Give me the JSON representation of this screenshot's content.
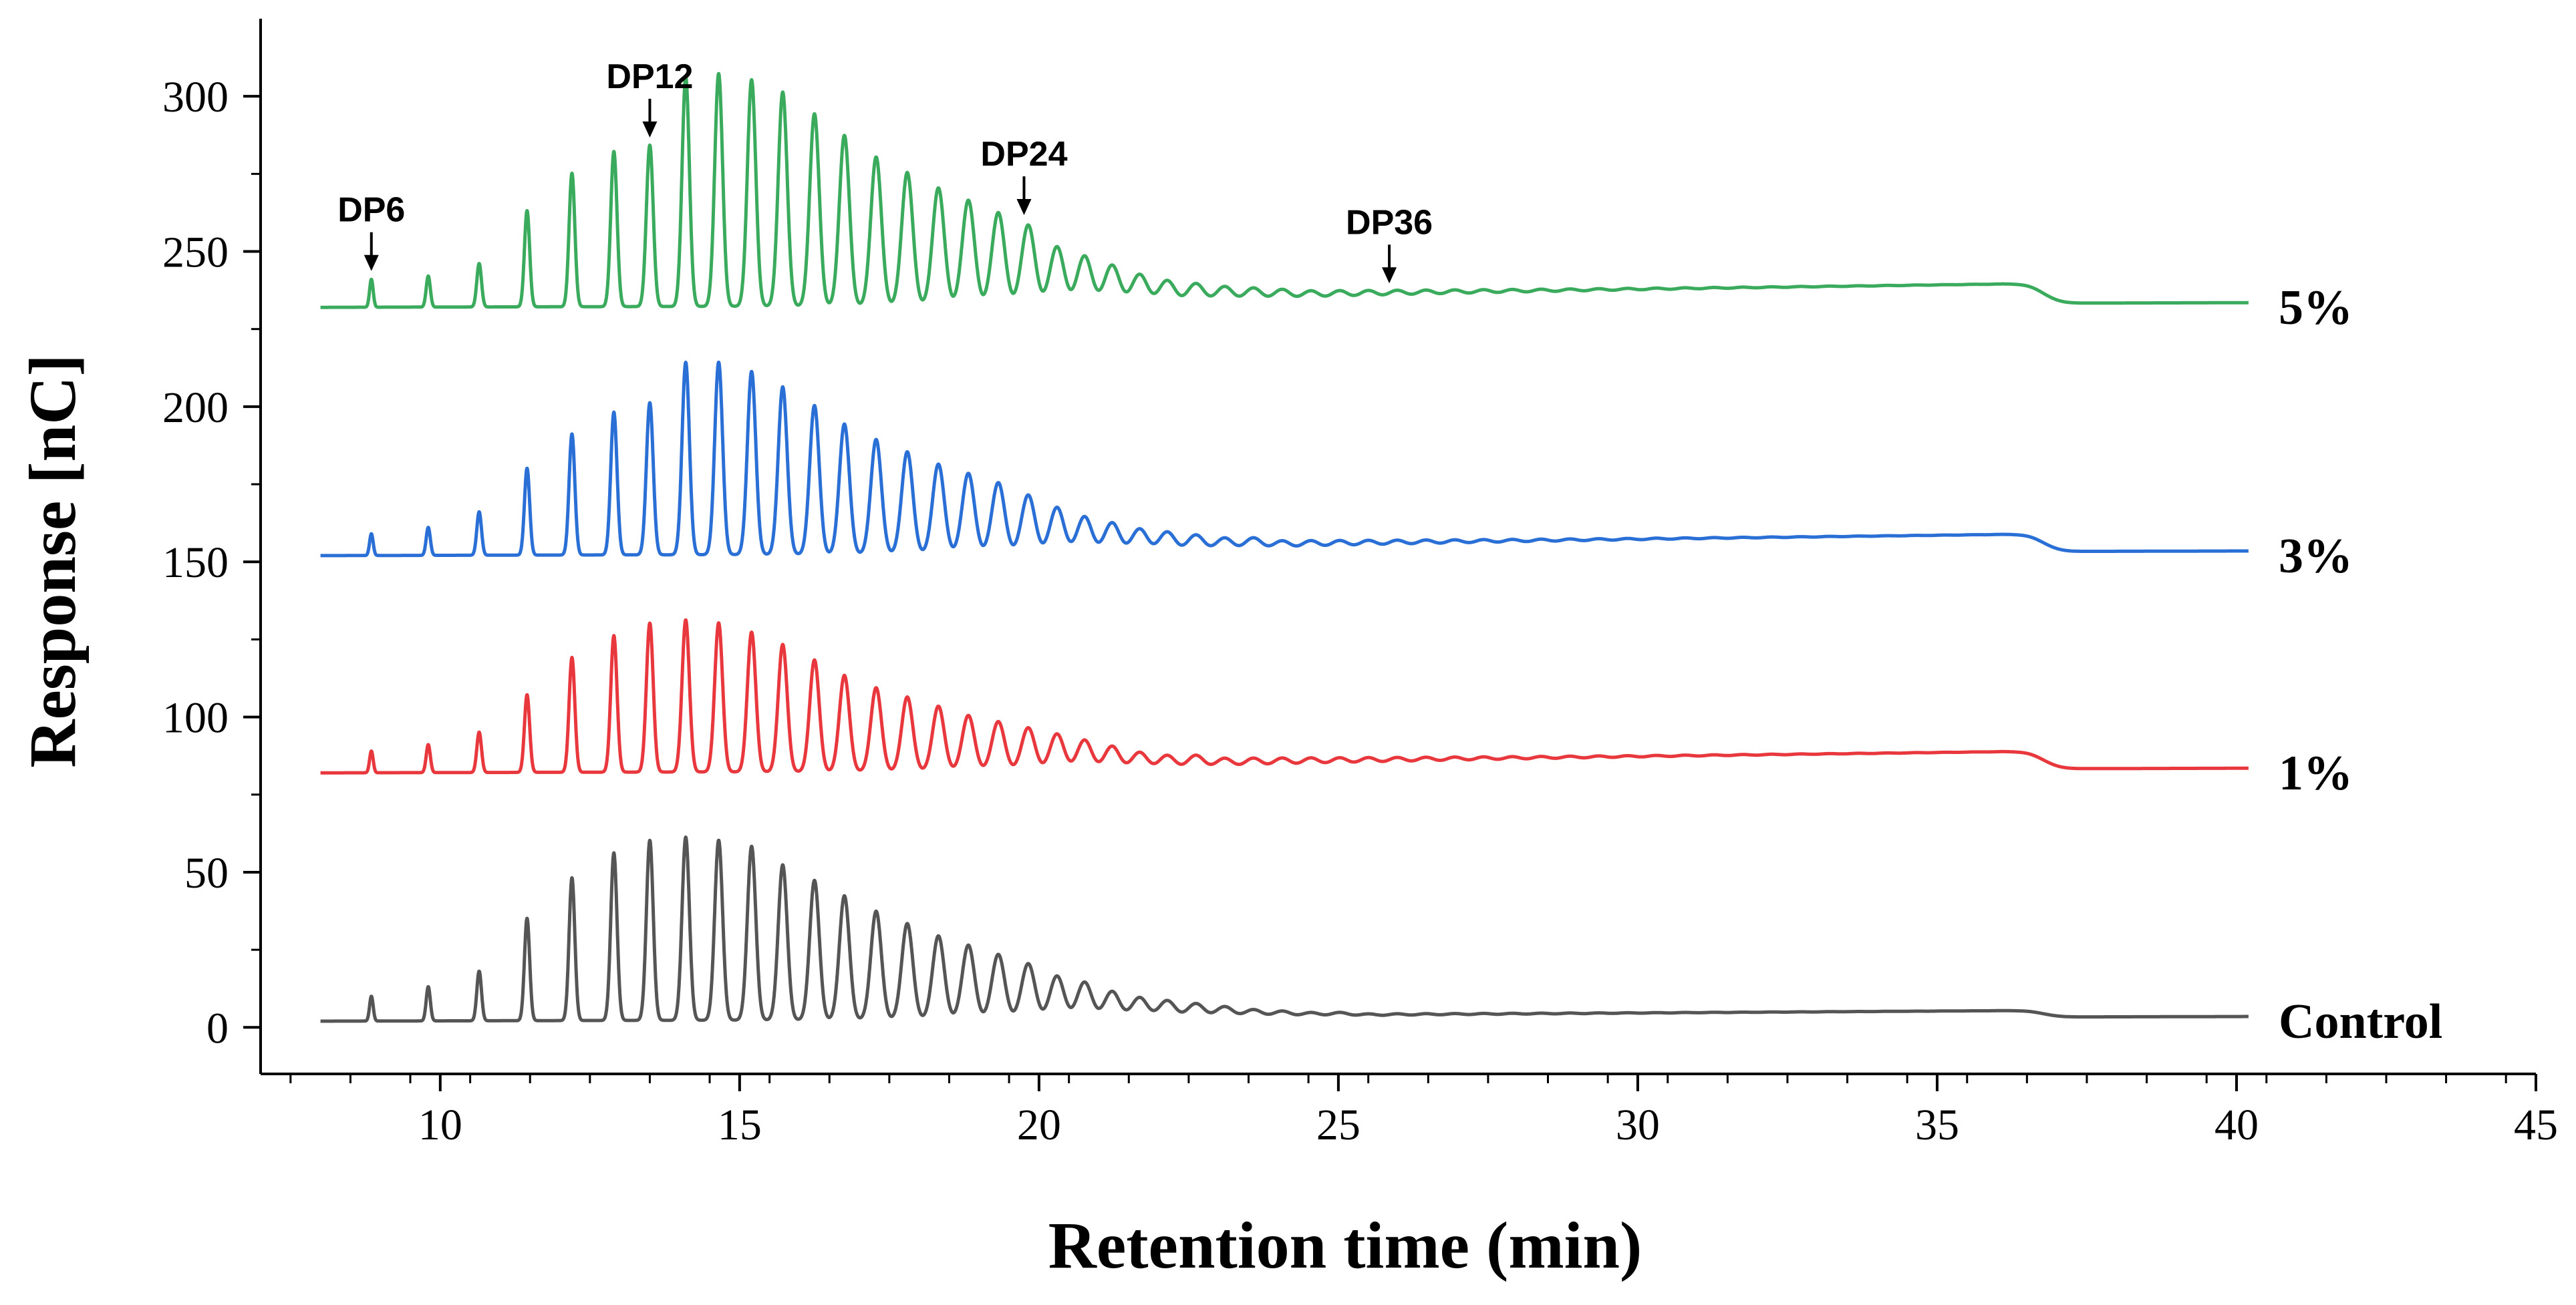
{
  "chart_data": {
    "type": "line",
    "title": "",
    "xlabel": "Retention time (min)",
    "ylabel": "Response [nC]",
    "xlim": [
      7,
      45
    ],
    "ylim": [
      -15,
      325
    ],
    "xticks": [
      10,
      15,
      20,
      25,
      30,
      35,
      40,
      45
    ],
    "yticks": [
      0,
      50,
      100,
      150,
      200,
      250,
      300
    ],
    "x_range": [
      8,
      40.2
    ],
    "peak_times": [
      8.85,
      9.8,
      10.65,
      11.45,
      12.2,
      12.9,
      13.5,
      14.1,
      14.65,
      15.2,
      15.72,
      16.25,
      16.75,
      17.28,
      17.8,
      18.32,
      18.82,
      19.32,
      19.82,
      20.3,
      20.76,
      21.22,
      21.68,
      22.14,
      22.62,
      23.1,
      23.58,
      24.06,
      24.54,
      25.02,
      25.5,
      25.98,
      26.46,
      26.94,
      27.42,
      27.9,
      28.38,
      28.86,
      29.34,
      29.82,
      30.3,
      30.78,
      31.26,
      31.74,
      32.22,
      32.7,
      33.18,
      33.66,
      34.14,
      34.62,
      35.1,
      35.58,
      36.06,
      36.54
    ],
    "series": [
      {
        "name": "Control",
        "label": "Control",
        "color": "#555555",
        "baseline": 2,
        "peak_heights": [
          10,
          13,
          18,
          35,
          48,
          56,
          60,
          61,
          60,
          58,
          52,
          47,
          42,
          37,
          33,
          29,
          26,
          23,
          20,
          16,
          14,
          11,
          9,
          8,
          7,
          6,
          5,
          4.5,
          4,
          4,
          3.5,
          3.5,
          3.5,
          3.5,
          3.5,
          3.5,
          3.5,
          3.5,
          3.5,
          3.5,
          3.5,
          3.5,
          3.5,
          3.5,
          3.5,
          3.5,
          3.5,
          3.5,
          3.5,
          3.5,
          3.5,
          3.5,
          3.5,
          3.5
        ]
      },
      {
        "name": "1%",
        "label": "1%",
        "color": "#e8383d",
        "baseline": 82,
        "peak_heights": [
          89,
          91,
          95,
          107,
          119,
          126,
          130,
          131,
          130,
          127,
          123,
          118,
          113,
          109,
          106,
          103,
          100,
          98,
          96,
          94,
          92,
          90,
          88,
          87,
          87,
          86,
          86,
          86,
          86,
          86,
          86,
          86,
          86,
          86,
          86,
          86,
          86,
          86,
          86,
          86,
          86,
          86,
          86,
          86,
          86,
          86,
          86,
          86,
          86,
          86,
          86,
          86,
          86,
          86
        ]
      },
      {
        "name": "3%",
        "label": "3%",
        "color": "#2a6fd6",
        "baseline": 152,
        "peak_heights": [
          159,
          161,
          166,
          180,
          191,
          198,
          201,
          214,
          214,
          211,
          206,
          200,
          194,
          189,
          185,
          181,
          178,
          175,
          171,
          167,
          164,
          162,
          160,
          159,
          158,
          157,
          157,
          156,
          156,
          156,
          156,
          156,
          156,
          156,
          156,
          156,
          156,
          156,
          156,
          156,
          156,
          156,
          156,
          156,
          156,
          156,
          156,
          156,
          156,
          156,
          156,
          156,
          156,
          156
        ]
      },
      {
        "name": "5%",
        "label": "5%",
        "color": "#3aaa5c",
        "baseline": 232,
        "peak_heights": [
          241,
          242,
          246,
          263,
          275,
          282,
          284,
          306,
          307,
          305,
          301,
          294,
          287,
          280,
          275,
          270,
          266,
          262,
          258,
          251,
          248,
          245,
          242,
          240,
          239,
          238,
          237.5,
          237,
          236.5,
          236.5,
          236.5,
          236.5,
          236.5,
          236.5,
          236.5,
          236.5,
          236.5,
          236.5,
          236.5,
          236.5,
          236.5,
          236.5,
          236.5,
          236.5,
          236.5,
          236.5,
          236.5,
          236.5,
          236.5,
          236.5,
          236.5,
          236.5,
          236.5,
          236.5
        ]
      }
    ],
    "annotations": [
      {
        "text": "DP6",
        "x": 8.85,
        "y": 242
      },
      {
        "text": "DP12",
        "x": 13.5,
        "y": 285
      },
      {
        "text": "DP24",
        "x": 19.75,
        "y": 260
      },
      {
        "text": "DP36",
        "x": 25.85,
        "y": 238
      }
    ]
  }
}
